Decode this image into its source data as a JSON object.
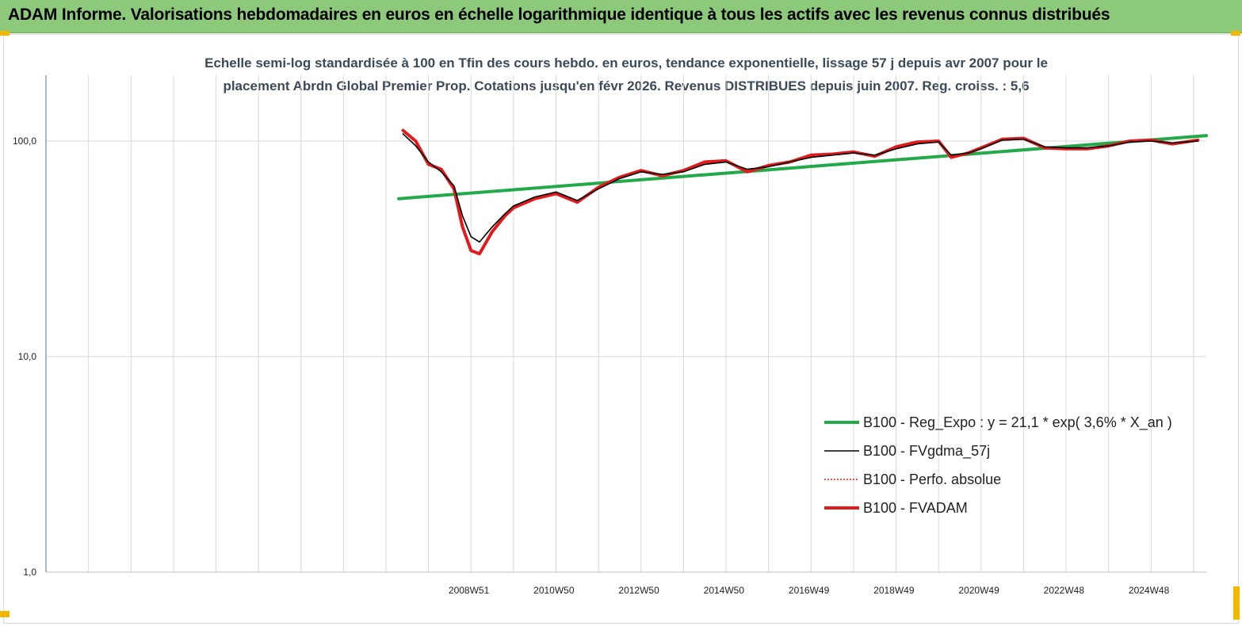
{
  "header": {
    "title": "ADAM Informe. Valorisations hebdomadaires en euros en échelle logarithmique identique à tous les actifs avec les revenus connus distribués"
  },
  "chart_data": {
    "type": "line",
    "title_line1": "Echelle semi-log standardisée à 100 en Tfin des cours hebdo. en euros, tendance exponentielle, lissage 57 j depuis avr 2007 pour le",
    "title_line2": "placement Abrdn Global Premier Prop. Cotations jusqu'en févr 2026. Revenus DISTRIBUES depuis juin 2007.  Reg. croiss. : 5,6",
    "y_scale": "log",
    "ylim": [
      1,
      180
    ],
    "y_ticks": [
      "1,0",
      "10,0",
      "100,0"
    ],
    "x_tick_labels": [
      "2008W51",
      "2010W50",
      "2012W50",
      "2014W50",
      "2016W49",
      "2018W49",
      "2020W49",
      "2022W48",
      "2024W48"
    ],
    "x_range_years": [
      1999.0,
      2026.3
    ],
    "grid": "vertical",
    "legend_position": "bottom-right",
    "series": [
      {
        "name": "B100 - Reg_Expo : y = 21,1 *  exp( 3,6% *  X_an )",
        "color": "#22aa4a",
        "style": "solid-thick",
        "x": [
          2007.3,
          2026.3
        ],
        "y": [
          54,
          106
        ]
      },
      {
        "name": "B100 - FVgdma_57j",
        "color": "#000000",
        "style": "solid-thin",
        "x": [
          2007.4,
          2007.7,
          2008.0,
          2008.3,
          2008.6,
          2008.8,
          2009.0,
          2009.2,
          2009.5,
          2009.8,
          2010.0,
          2010.5,
          2011.0,
          2011.5,
          2012.0,
          2012.5,
          2013.0,
          2013.5,
          2014.0,
          2014.5,
          2015.0,
          2015.5,
          2016.0,
          2016.5,
          2017.0,
          2017.5,
          2018.0,
          2018.5,
          2019.0,
          2019.5,
          2020.0,
          2020.3,
          2020.7,
          2021.0,
          2021.5,
          2022.0,
          2022.5,
          2023.0,
          2023.5,
          2024.0,
          2024.5,
          2025.0,
          2025.5,
          2026.1
        ],
        "y": [
          108,
          95,
          80,
          72,
          62,
          45,
          36,
          34,
          40,
          46,
          50,
          55,
          58,
          53,
          60,
          67,
          72,
          70,
          72,
          78,
          80,
          74,
          76,
          80,
          84,
          86,
          88,
          86,
          92,
          97,
          99,
          86,
          88,
          92,
          101,
          102,
          94,
          93,
          93,
          95,
          99,
          100,
          98,
          100
        ]
      },
      {
        "name": "B100 - Perfo. absolue",
        "color": "#e31a1c",
        "style": "dotted",
        "x": [
          2007.4,
          2007.7,
          2008.0,
          2008.3,
          2008.6,
          2008.8,
          2009.0,
          2009.2,
          2009.5,
          2009.8,
          2010.0,
          2010.5,
          2011.0,
          2011.5,
          2012.0,
          2012.5,
          2013.0,
          2013.5,
          2014.0,
          2014.5,
          2015.0,
          2015.5,
          2016.0,
          2016.5,
          2017.0,
          2017.5,
          2018.0,
          2018.5,
          2019.0,
          2019.5,
          2020.0,
          2020.3,
          2020.7,
          2021.0,
          2021.5,
          2022.0,
          2022.5,
          2023.0,
          2023.5,
          2024.0,
          2024.5,
          2025.0,
          2025.5,
          2026.1
        ],
        "y": [
          112,
          100,
          78,
          74,
          60,
          40,
          31,
          30,
          38,
          45,
          49,
          54,
          57,
          52,
          61,
          68,
          73,
          69,
          73,
          80,
          81,
          72,
          77,
          80,
          86,
          87,
          89,
          85,
          94,
          99,
          100,
          84,
          88,
          93,
          102,
          103,
          93,
          92,
          92,
          95,
          100,
          101,
          97,
          101
        ]
      },
      {
        "name": "B100 - FVADAM",
        "color": "#e31a1c",
        "style": "solid-thick",
        "x": [
          2007.4,
          2007.7,
          2008.0,
          2008.3,
          2008.6,
          2008.8,
          2009.0,
          2009.2,
          2009.5,
          2009.8,
          2010.0,
          2010.5,
          2011.0,
          2011.5,
          2012.0,
          2012.5,
          2013.0,
          2013.5,
          2014.0,
          2014.5,
          2015.0,
          2015.5,
          2016.0,
          2016.5,
          2017.0,
          2017.5,
          2018.0,
          2018.5,
          2019.0,
          2019.5,
          2020.0,
          2020.3,
          2020.7,
          2021.0,
          2021.5,
          2022.0,
          2022.5,
          2023.0,
          2023.5,
          2024.0,
          2024.5,
          2025.0,
          2025.5,
          2026.1
        ],
        "y": [
          112,
          100,
          78,
          74,
          60,
          40,
          31,
          30,
          38,
          45,
          49,
          54,
          57,
          52,
          61,
          68,
          73,
          69,
          73,
          80,
          81,
          72,
          77,
          80,
          86,
          87,
          89,
          85,
          94,
          99,
          100,
          84,
          88,
          93,
          102,
          103,
          93,
          92,
          92,
          95,
          100,
          101,
          97,
          101
        ]
      }
    ]
  },
  "colors": {
    "banner": "#8cc97a",
    "corner_marks": "#f2b800",
    "gridline": "#d9d9d9",
    "axis": "#4472c4",
    "subtitle_text": "#3b4a5a"
  }
}
